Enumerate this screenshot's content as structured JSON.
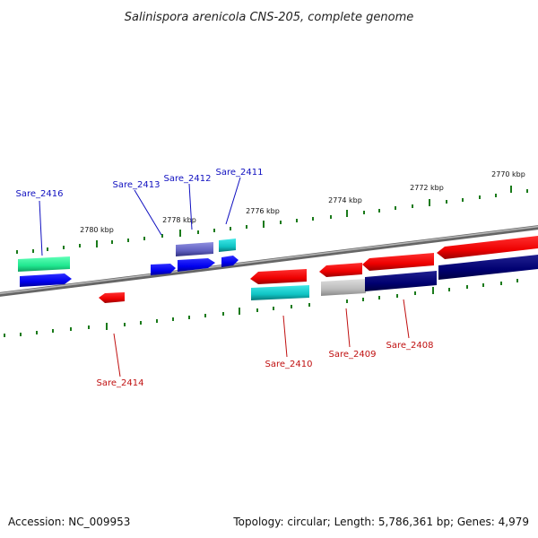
{
  "title": "Salinispora arenicola CNS-205, complete genome",
  "footer": {
    "accession": "Accession: NC_009953",
    "summary": "Topology: circular; Length: 5,786,361 bp; Genes: 4,979"
  },
  "colors": {
    "forward_label": "#1010c0",
    "reverse_label": "#c01010",
    "tick": "#1a7a1a",
    "backbone": "#7a7a7a"
  },
  "scale_labels": [
    "2780 kbp",
    "2778 kbp",
    "2776 kbp",
    "2774 kbp",
    "2772 kbp",
    "2770 kbp"
  ],
  "forward_genes": [
    "Sare_2416",
    "Sare_2413",
    "Sare_2412",
    "Sare_2411"
  ],
  "reverse_genes": [
    "Sare_2414",
    "Sare_2410",
    "Sare_2409",
    "Sare_2408"
  ]
}
